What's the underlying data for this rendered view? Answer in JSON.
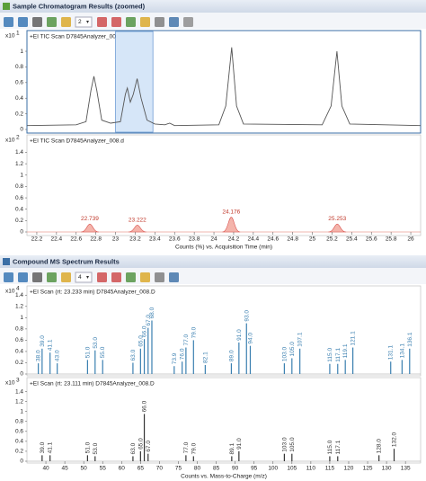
{
  "panels": [
    {
      "title": "Sample Chromatogram Results (zoomed)",
      "toolbar_value": 2
    },
    {
      "title": "Compound MS Spectrum Results",
      "toolbar_value": 4
    }
  ],
  "chart_data": [
    {
      "type": "line",
      "subtitle": "+EI TIC Scan D7845Analyzer_008.d",
      "scale": "x10",
      "scale_exp": 1,
      "color": "#555555",
      "x": [
        22.1,
        22.6,
        22.7,
        22.75,
        22.78,
        22.81,
        22.86,
        22.95,
        23.05,
        23.1,
        23.12,
        23.15,
        23.18,
        23.22,
        23.26,
        23.32,
        23.4,
        23.5,
        23.55,
        23.6,
        24.05,
        24.12,
        24.18,
        24.23,
        24.3,
        25.1,
        25.19,
        25.25,
        25.3,
        25.38,
        26.1
      ],
      "values": [
        0.05,
        0.06,
        0.1,
        0.5,
        0.68,
        0.5,
        0.12,
        0.08,
        0.1,
        0.45,
        0.53,
        0.35,
        0.45,
        0.65,
        0.4,
        0.12,
        0.07,
        0.06,
        0.08,
        0.05,
        0.06,
        0.3,
        1.05,
        0.3,
        0.07,
        0.06,
        0.3,
        1.0,
        0.3,
        0.07,
        0.05
      ],
      "xlim": [
        22.1,
        26.1
      ],
      "ylim": [
        0,
        1.15
      ],
      "yticks": [
        0,
        0.2,
        0.4,
        0.6,
        0.8,
        1
      ],
      "selection": [
        23.0,
        23.38
      ]
    },
    {
      "type": "peaks",
      "subtitle": "+EI TIC Scan D7845Analyzer_008.d",
      "scale": "x10",
      "scale_exp": 2,
      "color": "#f4b4ab",
      "x": [
        22.739,
        23.222,
        24.176,
        25.253
      ],
      "values": [
        0.14,
        0.12,
        0.26,
        0.14
      ],
      "xlim": [
        22.1,
        26.1
      ],
      "ylim": [
        0,
        1.55
      ],
      "yticks": [
        0,
        0.2,
        0.4,
        0.6,
        0.8,
        1,
        1.2,
        1.4
      ],
      "xticks": [
        22.2,
        22.4,
        22.6,
        22.8,
        23,
        23.2,
        23.4,
        23.6,
        23.8,
        24,
        24.2,
        24.4,
        24.6,
        24.8,
        25,
        25.2,
        25.4,
        25.6,
        25.8,
        26
      ],
      "xlabel": "Counts (%) vs. Acquisition Time (min)"
    },
    {
      "type": "spectrum",
      "subtitle": "+EI Scan (rt: 23.233 min) D7845Analyzer_008.D",
      "scale": "x10",
      "scale_exp": 4,
      "color": "#3a7fb0",
      "x": [
        38.0,
        39.0,
        41.1,
        43.0,
        51.0,
        53.0,
        55.0,
        63.0,
        65.0,
        66.0,
        67.0,
        68.0,
        73.9,
        76.0,
        77.0,
        79.0,
        82.1,
        89.0,
        91.0,
        93.0,
        94.0,
        103.0,
        105.0,
        107.1,
        115.0,
        117.1,
        119.1,
        121.1,
        131.1,
        134.1,
        136.1
      ],
      "x_labels": [
        "38.0",
        "39.0",
        "41.1",
        "43.0",
        "51.0",
        "53.0",
        "55.0",
        "63.0",
        "65.0",
        "66.0",
        "67.0",
        "68.0",
        "73.9",
        "76.0",
        "77.0",
        "79.0",
        "82.1",
        "89.0",
        "91.0",
        "93.0",
        "94.0",
        "103.0",
        "105.0",
        "107.1",
        "115.0",
        "117.1",
        "119.1",
        "121.1",
        "131.1",
        "134.1",
        "136.1"
      ],
      "values": [
        0.19,
        0.45,
        0.38,
        0.19,
        0.25,
        0.42,
        0.25,
        0.2,
        0.45,
        0.62,
        0.82,
        0.95,
        0.14,
        0.22,
        0.47,
        0.6,
        0.16,
        0.19,
        0.56,
        0.9,
        0.5,
        0.19,
        0.28,
        0.45,
        0.18,
        0.18,
        0.25,
        0.47,
        0.22,
        0.25,
        0.45
      ],
      "xlim": [
        35,
        139
      ],
      "ylim": [
        0,
        1.5
      ],
      "yticks": [
        0,
        0.2,
        0.4,
        0.6,
        0.8,
        1,
        1.2,
        1.4
      ]
    },
    {
      "type": "spectrum",
      "subtitle": "+EI Scan (rt: 23.111 min) D7845Analyzer_008.D",
      "scale": "x10",
      "scale_exp": 3,
      "color": "#333333",
      "x": [
        39.0,
        41.1,
        51.0,
        53.0,
        63.0,
        65.0,
        66.0,
        67.0,
        77.0,
        79.0,
        89.1,
        91.0,
        103.0,
        105.0,
        115.0,
        117.1,
        128.0,
        132.0
      ],
      "x_labels": [
        "39.0",
        "41.1",
        "51.0",
        "53.0",
        "63.0",
        "65.0",
        "66.0",
        "67.0",
        "77.0",
        "79.0",
        "89.1",
        "91.0",
        "103.0",
        "105.0",
        "115.0",
        "117.1",
        "128.0",
        "132.0"
      ],
      "values": [
        0.12,
        0.12,
        0.12,
        0.1,
        0.1,
        0.2,
        0.95,
        0.15,
        0.12,
        0.1,
        0.1,
        0.2,
        0.15,
        0.15,
        0.1,
        0.1,
        0.12,
        0.25
      ],
      "xlim": [
        35,
        139
      ],
      "ylim": [
        0,
        1.5
      ],
      "yticks": [
        0,
        0.2,
        0.4,
        0.6,
        0.8,
        1,
        1.2,
        1.4
      ],
      "xticks": [
        40,
        45,
        50,
        55,
        60,
        65,
        70,
        75,
        80,
        85,
        90,
        95,
        100,
        105,
        110,
        115,
        120,
        125,
        130,
        135
      ],
      "xlabel": "Counts vs. Mass-to-Charge (m/z)"
    }
  ]
}
